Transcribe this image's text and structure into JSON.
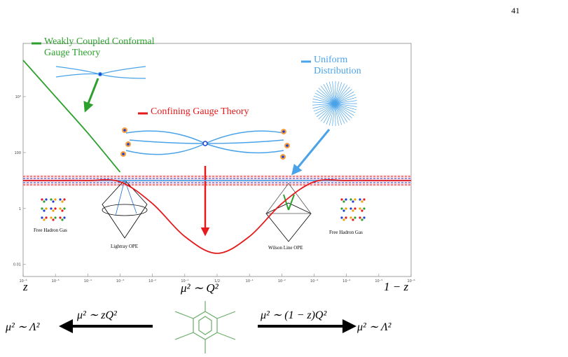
{
  "page_number": "41",
  "chart_data": {
    "type": "line",
    "x_tick_labels": [
      "10⁻⁶",
      "10⁻⁵",
      "10⁻⁴",
      "10⁻³",
      "10⁻²",
      "10⁻¹",
      "1/2",
      "10⁻¹",
      "10⁻²",
      "10⁻³",
      "10⁻⁴",
      "10⁻⁵",
      "10⁻⁶"
    ],
    "x_axis_labels": {
      "left": "z",
      "center": "μ² ∼ Q²",
      "right": "1 − z"
    },
    "y_scale": "log",
    "ylim": [
      0.0037,
      800000
    ],
    "yticks": [
      0.01,
      1,
      100,
      {
        "value": 10000,
        "label": "10⁴"
      }
    ],
    "series": [
      {
        "name": "Weakly Coupled Conformal Gauge Theory",
        "color": "#2ca02c",
        "values": [
          200000,
          10000,
          500,
          20,
          null,
          null,
          null,
          null,
          null,
          null,
          null,
          null,
          null
        ]
      },
      {
        "name": "Confining Gauge Theory",
        "color": "#e41a1c",
        "values": [
          10,
          10,
          10,
          9,
          1.5,
          0.1,
          0.025,
          0.1,
          1.5,
          9,
          10,
          10,
          10
        ]
      },
      {
        "name": "Uniform Distribution",
        "color": "#4aa3e8",
        "values": [
          10,
          10,
          10,
          10,
          10,
          10,
          10,
          10,
          10,
          10,
          10,
          10,
          10
        ]
      }
    ],
    "annotations": [
      "Free Hadron Gas",
      "Lightray OPE",
      "Wilson Line OPE",
      "Free Hadron Gas"
    ],
    "scale_arrows": {
      "left_label": "μ² ∼ zQ²",
      "left_end": "μ² ∼ Λ²",
      "right_label": "μ² ∼ (1 − z)Q²",
      "right_end": "μ² ∼ Λ²"
    }
  }
}
